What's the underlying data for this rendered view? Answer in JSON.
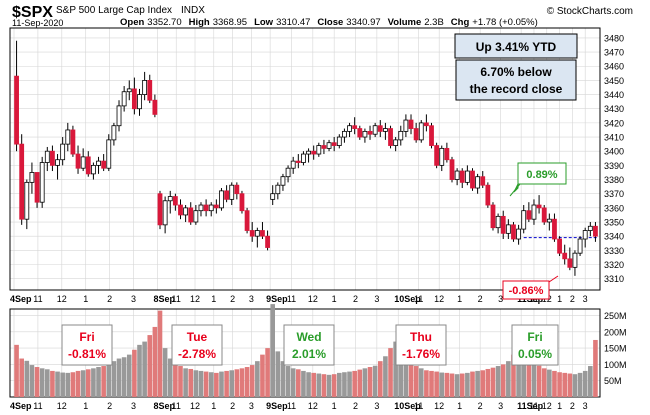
{
  "header": {
    "symbol": "$SPX",
    "name": "S&P 500 Large Cap Index",
    "exchange": "INDX",
    "date": "11-Sep-2020",
    "watermark": "© StockCharts.com",
    "open_label": "Open",
    "open": "3352.70",
    "high_label": "High",
    "high": "3368.95",
    "low_label": "Low",
    "low": "3310.47",
    "close_label": "Close",
    "close": "3340.97",
    "volume_label": "Volume",
    "volume": "2.3B",
    "chg_label": "Chg",
    "chg": "+1.78 (+0.05%)"
  },
  "annotations": {
    "ytd": "Up 3.41% YTD",
    "record_line1": "6.70% below",
    "record_line2": "the record close",
    "rally_pct": "0.89%",
    "dip_pct": "-0.86%"
  },
  "day_boxes": [
    {
      "day": "Fri",
      "chg": "-0.81%",
      "color": "#e8001c"
    },
    {
      "day": "Tue",
      "chg": "-2.78%",
      "color": "#e8001c"
    },
    {
      "day": "Wed",
      "chg": "2.01%",
      "color": "#2a9d2a"
    },
    {
      "day": "Thu",
      "chg": "-1.76%",
      "color": "#e8001c"
    },
    {
      "day": "Fri",
      "chg": "0.05%",
      "color": "#2a9d2a"
    }
  ],
  "colors": {
    "up": "#ffffff",
    "down": "#d9183b",
    "frame": "#000000",
    "grid": "#d6d6d6",
    "vol_up": "#999999",
    "vol_down": "#e07a7a",
    "box_fill": "#dbe6f2",
    "ref_line": "#0000cc"
  },
  "chart_data": [
    {
      "type": "candlestick",
      "title": "$SPX",
      "interval": "10-minute",
      "ylim": [
        3302,
        3487
      ],
      "y_ticks": [
        3310,
        3320,
        3330,
        3340,
        3350,
        3360,
        3370,
        3380,
        3390,
        3400,
        3410,
        3420,
        3430,
        3440,
        3450,
        3460,
        3470,
        3480
      ],
      "x_tick_labels": [
        "4Sep",
        "11",
        "12",
        "1",
        "2",
        "3",
        "8Sep",
        "11",
        "12",
        "1",
        "2",
        "3",
        "9Sep",
        "11",
        "12",
        "1",
        "2",
        "3",
        "10Sep",
        "11",
        "12",
        "1",
        "2",
        "3",
        "11Sep",
        "11",
        "12",
        "1",
        "2",
        "3"
      ],
      "reference_line": 3339,
      "grid": true,
      "sessions": [
        {
          "label": "4Sep",
          "ohlc": [
            [
              3453,
              3478,
              3400,
              3405
            ],
            [
              3405,
              3412,
              3348,
              3352
            ],
            [
              3352,
              3380,
              3345,
              3378
            ],
            [
              3378,
              3392,
              3370,
              3385
            ],
            [
              3385,
              3385,
              3360,
              3364
            ],
            [
              3364,
              3396,
              3360,
              3392
            ],
            [
              3392,
              3403,
              3386,
              3400
            ],
            [
              3400,
              3404,
              3386,
              3390
            ],
            [
              3390,
              3398,
              3380,
              3394
            ],
            [
              3394,
              3410,
              3390,
              3405
            ],
            [
              3405,
              3420,
              3400,
              3415
            ],
            [
              3415,
              3418,
              3396,
              3398
            ],
            [
              3398,
              3404,
              3384,
              3388
            ],
            [
              3388,
              3402,
              3386,
              3396
            ],
            [
              3396,
              3400,
              3382,
              3384
            ],
            [
              3384,
              3392,
              3380,
              3390
            ],
            [
              3390,
              3396,
              3384,
              3393
            ],
            [
              3393,
              3398,
              3386,
              3388
            ],
            [
              3388,
              3412,
              3386,
              3408
            ],
            [
              3408,
              3420,
              3404,
              3418
            ],
            [
              3418,
              3436,
              3414,
              3432
            ],
            [
              3432,
              3446,
              3428,
              3442
            ],
            [
              3442,
              3450,
              3436,
              3444
            ],
            [
              3444,
              3452,
              3426,
              3430
            ],
            [
              3430,
              3444,
              3425,
              3440
            ],
            [
              3440,
              3456,
              3436,
              3450
            ],
            [
              3450,
              3454,
              3434,
              3436
            ],
            [
              3436,
              3440,
              3424,
              3426
            ]
          ]
        },
        {
          "label": "8Sep",
          "ohlc": [
            [
              3370,
              3372,
              3345,
              3348
            ],
            [
              3348,
              3368,
              3342,
              3365
            ],
            [
              3365,
              3372,
              3356,
              3368
            ],
            [
              3368,
              3370,
              3358,
              3362
            ],
            [
              3362,
              3366,
              3352,
              3355
            ],
            [
              3355,
              3362,
              3350,
              3360
            ],
            [
              3360,
              3364,
              3348,
              3350
            ],
            [
              3350,
              3362,
              3348,
              3358
            ],
            [
              3358,
              3364,
              3354,
              3362
            ],
            [
              3362,
              3366,
              3354,
              3358
            ],
            [
              3358,
              3364,
              3354,
              3362
            ],
            [
              3362,
              3366,
              3356,
              3360
            ],
            [
              3360,
              3374,
              3358,
              3372
            ],
            [
              3372,
              3376,
              3364,
              3366
            ],
            [
              3366,
              3378,
              3362,
              3376
            ],
            [
              3376,
              3378,
              3366,
              3370
            ],
            [
              3370,
              3372,
              3356,
              3358
            ],
            [
              3358,
              3360,
              3342,
              3344
            ],
            [
              3344,
              3350,
              3336,
              3340
            ],
            [
              3340,
              3346,
              3332,
              3344
            ],
            [
              3344,
              3350,
              3338,
              3340
            ],
            [
              3340,
              3344,
              3330,
              3332
            ]
          ]
        },
        {
          "label": "9Sep",
          "ohlc": [
            [
              3366,
              3376,
              3362,
              3370
            ],
            [
              3370,
              3378,
              3366,
              3376
            ],
            [
              3376,
              3384,
              3372,
              3382
            ],
            [
              3382,
              3390,
              3378,
              3388
            ],
            [
              3388,
              3396,
              3384,
              3393
            ],
            [
              3393,
              3398,
              3388,
              3392
            ],
            [
              3392,
              3400,
              3390,
              3398
            ],
            [
              3398,
              3402,
              3392,
              3400
            ],
            [
              3400,
              3404,
              3394,
              3398
            ],
            [
              3398,
              3406,
              3396,
              3404
            ],
            [
              3404,
              3408,
              3398,
              3402
            ],
            [
              3402,
              3408,
              3400,
              3406
            ],
            [
              3406,
              3410,
              3400,
              3404
            ],
            [
              3404,
              3412,
              3402,
              3410
            ],
            [
              3410,
              3416,
              3406,
              3414
            ],
            [
              3414,
              3420,
              3410,
              3418
            ],
            [
              3418,
              3424,
              3412,
              3416
            ],
            [
              3416,
              3418,
              3408,
              3410
            ],
            [
              3410,
              3416,
              3406,
              3414
            ],
            [
              3414,
              3418,
              3408,
              3412
            ],
            [
              3412,
              3420,
              3410,
              3418
            ],
            [
              3418,
              3422,
              3410,
              3414
            ],
            [
              3414,
              3420,
              3408,
              3416
            ],
            [
              3416,
              3418,
              3402,
              3404
            ],
            [
              3404,
              3410,
              3400,
              3408
            ]
          ]
        },
        {
          "label": "10Sep",
          "ohlc": [
            [
              3408,
              3418,
              3404,
              3414
            ],
            [
              3414,
              3426,
              3410,
              3422
            ],
            [
              3422,
              3426,
              3412,
              3416
            ],
            [
              3416,
              3420,
              3406,
              3408
            ],
            [
              3408,
              3422,
              3406,
              3420
            ],
            [
              3420,
              3426,
              3414,
              3418
            ],
            [
              3418,
              3420,
              3402,
              3404
            ],
            [
              3404,
              3406,
              3388,
              3390
            ],
            [
              3390,
              3404,
              3386,
              3402
            ],
            [
              3402,
              3406,
              3392,
              3394
            ],
            [
              3394,
              3396,
              3378,
              3380
            ],
            [
              3380,
              3388,
              3376,
              3386
            ],
            [
              3386,
              3388,
              3374,
              3378
            ],
            [
              3378,
              3390,
              3376,
              3386
            ],
            [
              3386,
              3388,
              3372,
              3374
            ],
            [
              3374,
              3384,
              3370,
              3382
            ],
            [
              3382,
              3386,
              3374,
              3376
            ],
            [
              3376,
              3378,
              3360,
              3362
            ],
            [
              3362,
              3364,
              3344,
              3346
            ],
            [
              3346,
              3356,
              3342,
              3354
            ],
            [
              3354,
              3358,
              3338,
              3342
            ],
            [
              3342,
              3352,
              3338,
              3348
            ],
            [
              3348,
              3350,
              3336,
              3338
            ],
            [
              3338,
              3348,
              3334,
              3345
            ]
          ]
        },
        {
          "label": "11Sep",
          "ohlc": [
            [
              3345,
              3362,
              3342,
              3358
            ],
            [
              3358,
              3364,
              3350,
              3352
            ],
            [
              3352,
              3366,
              3348,
              3362
            ],
            [
              3362,
              3369,
              3356,
              3360
            ],
            [
              3360,
              3362,
              3348,
              3350
            ],
            [
              3350,
              3356,
              3344,
              3352
            ],
            [
              3352,
              3356,
              3336,
              3338
            ],
            [
              3338,
              3340,
              3326,
              3328
            ],
            [
              3328,
              3334,
              3320,
              3324
            ],
            [
              3324,
              3332,
              3316,
              3318
            ],
            [
              3318,
              3330,
              3312,
              3328
            ],
            [
              3328,
              3340,
              3326,
              3338
            ],
            [
              3338,
              3346,
              3332,
              3344
            ],
            [
              3344,
              3350,
              3340,
              3347
            ],
            [
              3347,
              3350,
              3336,
              3340
            ]
          ]
        }
      ]
    },
    {
      "type": "bar",
      "title": "Volume",
      "ylim": [
        0,
        270
      ],
      "y_tick_labels": [
        "50M",
        "100M",
        "150M",
        "200M",
        "250M"
      ],
      "y_ticks": [
        50,
        100,
        150,
        200,
        250
      ],
      "volumes": [
        [
          160,
          118,
          111,
          98,
          92,
          88,
          85,
          80,
          78,
          75,
          74,
          76,
          80,
          82,
          85,
          88,
          92,
          95,
          102,
          110,
          118,
          122,
          130,
          145,
          160,
          170,
          190,
          215
        ],
        [
          265,
          150,
          118,
          100,
          95,
          88,
          86,
          82,
          80,
          78,
          76,
          74,
          78,
          80,
          82,
          85,
          88,
          92,
          98,
          110,
          130,
          150
        ],
        [
          285,
          140,
          110,
          95,
          88,
          85,
          80,
          76,
          74,
          72,
          70,
          68,
          70,
          74,
          76,
          78,
          80,
          84,
          88,
          92,
          96,
          110,
          125,
          150,
          170
        ],
        [
          215,
          130,
          110,
          95,
          88,
          82,
          80,
          78,
          75,
          74,
          72,
          70,
          72,
          74,
          78,
          80,
          82,
          86,
          90,
          95,
          100,
          110,
          130,
          175
        ],
        [
          160,
          130,
          110,
          96,
          88,
          84,
          80,
          76,
          74,
          72,
          70,
          74,
          80,
          95,
          175
        ]
      ]
    }
  ]
}
